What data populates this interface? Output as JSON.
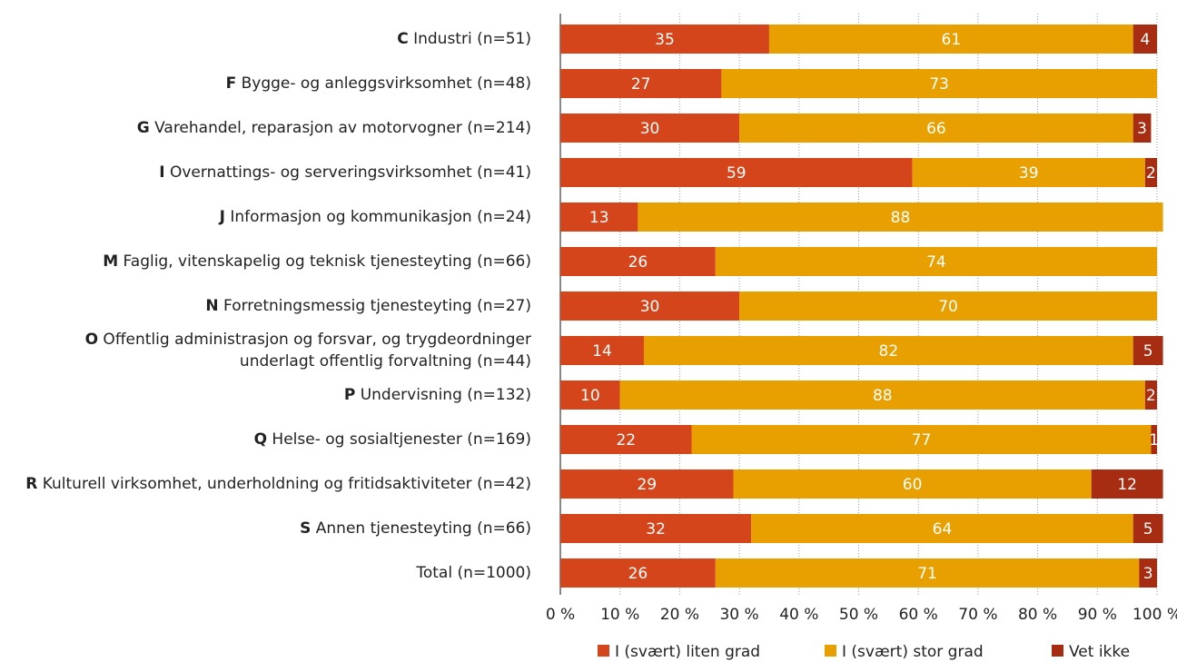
{
  "chart_data": {
    "type": "stacked_barh",
    "categories": [
      "C Industri (n=51)",
      "F Bygge- og anleggsvirksomhet (n=48)",
      "G Varehandel, reparasjon av motorvogner (n=214)",
      "I Overnattings- og serveringsvirksomhet (n=41)",
      "J Informasjon og kommunikasjon (n=24)",
      "M Faglig, vitenskapelig og teknisk tjenesteyting (n=66)",
      "N Forretningsmessig tjenesteyting (n=27)",
      "O Offentlig administrasjon og forsvar, og trygdeordninger\nunderlagt offentlig forvaltning (n=44)",
      "P Undervisning (n=132)",
      "Q Helse- og sosialtjenester (n=169)",
      "R Kulturell virksomhet, underholdning og fritidsaktiviteter (n=42)",
      "S Annen tjenesteyting (n=66)",
      "Total (n=1000)"
    ],
    "series": [
      {
        "name": "I (svært) liten grad",
        "color": "#d5451b",
        "values": [
          35,
          27,
          30,
          59,
          13,
          26,
          30,
          14,
          10,
          22,
          29,
          32,
          26
        ]
      },
      {
        "name": "I (svært) stor grad",
        "color": "#e8a000",
        "values": [
          61,
          73,
          66,
          39,
          88,
          74,
          70,
          82,
          88,
          77,
          60,
          64,
          71
        ]
      },
      {
        "name": "Vet ikke",
        "color": "#a62c12",
        "values": [
          4,
          null,
          3,
          2,
          null,
          null,
          null,
          5,
          2,
          1,
          12,
          5,
          3
        ]
      }
    ],
    "xlim": [
      0,
      100
    ],
    "xticks": [
      {
        "value": 0,
        "label": "0 %"
      },
      {
        "value": 10,
        "label": "10 %"
      },
      {
        "value": 20,
        "label": "20 %"
      },
      {
        "value": 30,
        "label": "30 %"
      },
      {
        "value": 40,
        "label": "40 %"
      },
      {
        "value": 50,
        "label": "50 %"
      },
      {
        "value": 60,
        "label": "60 %"
      },
      {
        "value": 70,
        "label": "70 %"
      },
      {
        "value": 80,
        "label": "80 %"
      },
      {
        "value": 90,
        "label": "90 %"
      },
      {
        "value": 100,
        "label": "100 %"
      }
    ],
    "grid": true,
    "legend": "bottom"
  }
}
